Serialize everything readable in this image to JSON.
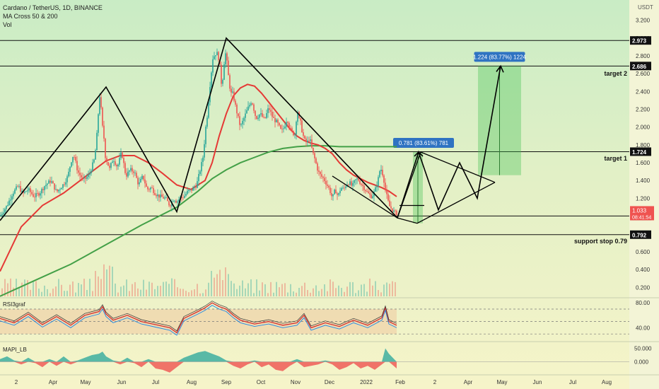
{
  "header": {
    "symbol_line": "Cardano / TetherUS, 1D, BINANCE",
    "indicator_1": "MA Cross 50 & 200",
    "indicator_2": "Vol",
    "currency": "USDT"
  },
  "colors": {
    "background": "#eef6cf",
    "up_candle": "#26a69a",
    "down_candle": "#ef5350",
    "ma50": "#e53935",
    "ma200": "#43a047",
    "measure_box": "#2f73c2",
    "current_price": "#ef5350"
  },
  "chart_data": [
    {
      "type": "candlestick",
      "title": "Cardano / TetherUS, 1D, BINANCE",
      "x_ticks": [
        "2",
        "Apr",
        "May",
        "Jun",
        "Jul",
        "Aug",
        "Sep",
        "Oct",
        "Nov",
        "Dec",
        "2022",
        "Feb",
        "2",
        "Apr",
        "May",
        "Jun",
        "Jul",
        "Aug"
      ],
      "y_ticks": [
        "0.200",
        "0.400",
        "0.600",
        "0.800",
        "1.000",
        "1.200",
        "1.400",
        "1.600",
        "1.800",
        "2.000",
        "2.200",
        "2.400",
        "2.600",
        "2.800",
        "3.000",
        "3.200"
      ],
      "ylim": [
        0.08,
        3.22
      ],
      "close_path": {
        "x": [
          0,
          10,
          18,
          26,
          32,
          40,
          48,
          56,
          63,
          72,
          80,
          90,
          96,
          100,
          104,
          110,
          118,
          126,
          134,
          138,
          140,
          142,
          143,
          144,
          145,
          146,
          148,
          151,
          155,
          160,
          166,
          172,
          178,
          184,
          190,
          196,
          202,
          208,
          214,
          220,
          226,
          234,
          240,
          246,
          250,
          254,
          260,
          266,
          272,
          278,
          284,
          288,
          290,
          292,
          294,
          296,
          298,
          300,
          302,
          304,
          306,
          308,
          310,
          312,
          314,
          316,
          318,
          320,
          322,
          324,
          326,
          328,
          330,
          334,
          340,
          346,
          350,
          356,
          362,
          368,
          374,
          380,
          386,
          392,
          398,
          402,
          406,
          410,
          414,
          418,
          420,
          422,
          425,
          428,
          431,
          434,
          438,
          442,
          446,
          450,
          454,
          458,
          462,
          466,
          470,
          474,
          478,
          482,
          486,
          490,
          494,
          498,
          502,
          506,
          510,
          514,
          518,
          522,
          526,
          530,
          534,
          538,
          540,
          542,
          544,
          546,
          548,
          550,
          552,
          555,
          558,
          561
        ],
        "y": [
          1.0,
          1.12,
          1.26,
          1.34,
          1.25,
          1.3,
          1.22,
          1.26,
          1.34,
          1.4,
          1.27,
          1.36,
          1.45,
          1.6,
          1.7,
          1.5,
          1.4,
          1.46,
          1.65,
          2.0,
          2.3,
          2.4,
          2.2,
          1.9,
          2.0,
          2.05,
          1.7,
          1.62,
          1.53,
          1.65,
          1.55,
          1.72,
          1.45,
          1.52,
          1.5,
          1.35,
          1.45,
          1.3,
          1.32,
          1.25,
          1.22,
          1.2,
          1.12,
          1.2,
          1.16,
          1.2,
          1.22,
          1.28,
          1.3,
          1.35,
          1.55,
          1.7,
          1.95,
          2.05,
          2.2,
          2.4,
          2.55,
          2.7,
          2.85,
          2.75,
          2.9,
          2.75,
          2.8,
          2.55,
          2.45,
          2.65,
          2.8,
          2.85,
          2.6,
          2.55,
          2.35,
          2.4,
          2.35,
          2.2,
          2.0,
          2.12,
          2.2,
          2.3,
          2.1,
          2.15,
          2.08,
          2.22,
          2.1,
          2.05,
          1.95,
          2.0,
          2.1,
          1.98,
          1.93,
          1.92,
          2.25,
          2.1,
          2.05,
          1.92,
          1.85,
          1.82,
          1.88,
          1.72,
          1.62,
          1.5,
          1.45,
          1.42,
          1.36,
          1.3,
          1.2,
          1.3,
          1.22,
          1.32,
          1.3,
          1.36,
          1.38,
          1.33,
          1.4,
          1.42,
          1.37,
          1.33,
          1.28,
          1.24,
          1.22,
          1.28,
          1.38,
          1.55,
          1.5,
          1.45,
          1.35,
          1.25,
          1.2,
          1.12,
          1.1,
          1.07,
          1.04,
          1.033
        ]
      },
      "ma50_path": {
        "x": [
          0,
          30,
          60,
          90,
          110,
          130,
          150,
          170,
          190,
          210,
          230,
          250,
          270,
          290,
          300,
          310,
          320,
          330,
          340,
          350,
          360,
          370,
          380,
          390,
          400,
          410,
          420,
          430,
          440,
          450,
          460,
          470,
          480,
          490,
          500,
          510,
          520,
          530,
          540,
          550,
          561
        ],
        "y": [
          0.38,
          0.88,
          1.12,
          1.26,
          1.38,
          1.5,
          1.62,
          1.68,
          1.68,
          1.6,
          1.48,
          1.35,
          1.3,
          1.4,
          1.6,
          1.9,
          2.15,
          2.35,
          2.44,
          2.48,
          2.46,
          2.38,
          2.28,
          2.18,
          2.08,
          1.98,
          1.9,
          1.85,
          1.82,
          1.8,
          1.76,
          1.7,
          1.6,
          1.52,
          1.46,
          1.42,
          1.38,
          1.35,
          1.32,
          1.28,
          1.22
        ]
      },
      "ma200_path": {
        "x": [
          0,
          50,
          100,
          150,
          200,
          250,
          280,
          300,
          320,
          340,
          360,
          380,
          400,
          420,
          440,
          460,
          480,
          500,
          520,
          540,
          561
        ],
        "y": [
          0.1,
          0.28,
          0.46,
          0.68,
          0.9,
          1.1,
          1.28,
          1.42,
          1.52,
          1.6,
          1.66,
          1.72,
          1.76,
          1.78,
          1.79,
          1.79,
          1.78,
          1.78,
          1.78,
          1.78,
          1.78
        ]
      },
      "horizontal_levels": [
        {
          "price": 2.973,
          "label": "2.973"
        },
        {
          "price": 2.686,
          "label": "2.686"
        },
        {
          "price": 1.724,
          "label": "1.724"
        },
        {
          "price": 1.002,
          "label": "1.002"
        },
        {
          "price": 0.792,
          "label": "0.792"
        }
      ],
      "annotations": [
        {
          "text": "target 2",
          "price": 2.6
        },
        {
          "text": "target 1",
          "price": 1.65
        },
        {
          "text": "support stop 0.79",
          "price": 0.72
        }
      ],
      "current_price": {
        "value": "1.033",
        "countdown": "08:41:54"
      },
      "drawings": {
        "zigzag_left": {
          "x": [
            0,
            150,
            250,
            320,
            562
          ],
          "y": [
            0.95,
            2.45,
            1.05,
            3.0,
            0.98
          ]
        },
        "projection": {
          "x": [
            562,
            592,
            620,
            650,
            675,
            708
          ],
          "y": [
            0.98,
            1.72,
            1.07,
            1.6,
            1.2,
            2.686
          ]
        },
        "wedge_left": {
          "x": [
            470,
            562,
            595,
            700
          ],
          "y": [
            1.45,
            0.98,
            1.72,
            1.38
          ]
        },
        "wedge_right": {
          "x": [
            562,
            590,
            700
          ],
          "y": [
            0.98,
            0.92,
            1.38
          ]
        },
        "small_arrow": {
          "x": [
            565,
            600
          ],
          "y": [
            1.12,
            1.12
          ]
        }
      },
      "measure_1": {
        "label": "0.781 (83.61%) 781",
        "x0": 584,
        "x1": 598,
        "y0": 0.92,
        "y1": 1.72
      },
      "measure_2": {
        "label": "1.224 (83.77%) 1224",
        "x0": 676,
        "x1": 737,
        "y0": 1.46,
        "y1": 2.686
      }
    },
    {
      "type": "line",
      "title": "RSI3graf",
      "y_ticks": [
        "80.00",
        "40.00"
      ],
      "levels": [
        70,
        50,
        30
      ],
      "ylim": [
        20,
        90
      ],
      "series": [
        {
          "name": "RSI3graf",
          "x": [
            0,
            20,
            40,
            60,
            80,
            100,
            120,
            140,
            145,
            150,
            160,
            180,
            200,
            220,
            240,
            250,
            260,
            280,
            290,
            300,
            310,
            320,
            330,
            340,
            360,
            380,
            400,
            420,
            430,
            440,
            460,
            480,
            500,
            520,
            540,
            545,
            550,
            561
          ],
          "y": [
            55,
            48,
            62,
            45,
            58,
            44,
            60,
            66,
            74,
            62,
            52,
            60,
            50,
            45,
            40,
            32,
            55,
            66,
            72,
            80,
            74,
            70,
            60,
            52,
            46,
            50,
            44,
            48,
            60,
            40,
            48,
            42,
            52,
            44,
            56,
            72,
            50,
            44
          ]
        }
      ]
    },
    {
      "type": "area",
      "title": "MAPI_LB",
      "y_ticks": [
        "50.000",
        "0.000"
      ],
      "ylim": [
        -60,
        70
      ],
      "series": [
        {
          "name": "MAPI_LB",
          "x": [
            0,
            10,
            20,
            30,
            40,
            50,
            60,
            70,
            80,
            90,
            100,
            110,
            120,
            130,
            140,
            145,
            150,
            160,
            170,
            180,
            190,
            200,
            210,
            220,
            230,
            240,
            250,
            260,
            270,
            280,
            290,
            300,
            310,
            320,
            330,
            340,
            350,
            360,
            370,
            380,
            390,
            400,
            410,
            420,
            430,
            440,
            450,
            460,
            470,
            480,
            490,
            500,
            510,
            520,
            530,
            540,
            545,
            550,
            561
          ],
          "y": [
            10,
            20,
            5,
            -10,
            15,
            -5,
            -20,
            10,
            -15,
            20,
            -10,
            5,
            15,
            25,
            30,
            38,
            20,
            5,
            -10,
            15,
            -5,
            -20,
            10,
            -25,
            -30,
            -40,
            -20,
            15,
            25,
            35,
            40,
            30,
            20,
            5,
            -15,
            -25,
            -10,
            5,
            -20,
            -10,
            -30,
            -35,
            -15,
            10,
            -20,
            -15,
            -10,
            5,
            -10,
            -30,
            -20,
            -5,
            -25,
            -15,
            -30,
            -10,
            50,
            30,
            -25
          ]
        }
      ]
    }
  ],
  "volume_bars": {
    "count": 140
  }
}
